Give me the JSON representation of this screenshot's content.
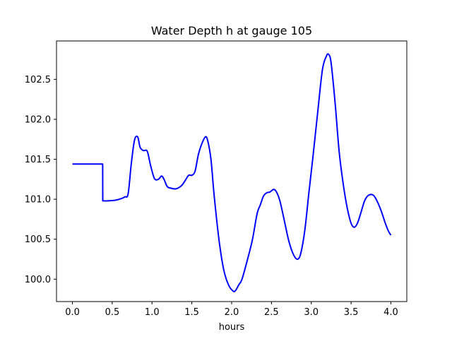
{
  "chart_data": {
    "type": "line",
    "title": "Water Depth h at gauge 105",
    "xlabel": "hours",
    "ylabel": "",
    "xlim": [
      -0.2,
      4.2
    ],
    "ylim": [
      99.72,
      102.98
    ],
    "xticks": [
      0.0,
      0.5,
      1.0,
      1.5,
      2.0,
      2.5,
      3.0,
      3.5,
      4.0
    ],
    "xtick_labels": [
      "0.0",
      "0.5",
      "1.0",
      "1.5",
      "2.0",
      "2.5",
      "3.0",
      "3.5",
      "4.0"
    ],
    "yticks": [
      100.0,
      100.5,
      101.0,
      101.5,
      102.0,
      102.5
    ],
    "ytick_labels": [
      "100.0",
      "100.5",
      "101.0",
      "101.5",
      "102.0",
      "102.5"
    ],
    "grid": false,
    "line_color": "#0000ff",
    "series": [
      {
        "x": [
          0.0,
          0.2,
          0.38,
          0.381,
          0.45,
          0.55,
          0.62,
          0.66,
          0.7,
          0.74,
          0.78,
          0.82,
          0.85,
          0.89,
          0.94,
          0.98,
          1.03,
          1.08,
          1.12,
          1.15,
          1.19,
          1.23,
          1.3,
          1.37,
          1.42,
          1.46,
          1.5,
          1.54,
          1.58,
          1.62,
          1.67,
          1.7,
          1.74,
          1.78,
          1.84,
          1.9,
          1.96,
          2.02,
          2.05,
          2.09,
          2.13,
          2.2,
          2.26,
          2.32,
          2.36,
          2.4,
          2.44,
          2.48,
          2.54,
          2.6,
          2.66,
          2.72,
          2.78,
          2.83,
          2.87,
          2.92,
          2.97,
          3.02,
          3.08,
          3.14,
          3.19,
          3.22,
          3.25,
          3.3,
          3.35,
          3.4,
          3.45,
          3.5,
          3.54,
          3.58,
          3.62,
          3.67,
          3.72,
          3.78,
          3.83,
          3.88,
          3.93,
          3.97,
          4.0
        ],
        "y": [
          101.44,
          101.44,
          101.44,
          100.98,
          100.98,
          100.99,
          101.01,
          101.03,
          101.07,
          101.45,
          101.74,
          101.78,
          101.65,
          101.61,
          101.6,
          101.43,
          101.26,
          101.25,
          101.29,
          101.25,
          101.16,
          101.14,
          101.13,
          101.17,
          101.24,
          101.3,
          101.3,
          101.35,
          101.55,
          101.68,
          101.78,
          101.73,
          101.5,
          101.05,
          100.5,
          100.12,
          99.93,
          99.85,
          99.86,
          99.93,
          100.0,
          100.25,
          100.49,
          100.82,
          100.93,
          101.04,
          101.08,
          101.09,
          101.12,
          101.0,
          100.74,
          100.47,
          100.3,
          100.25,
          100.33,
          100.62,
          101.08,
          101.52,
          102.08,
          102.62,
          102.79,
          102.81,
          102.7,
          102.2,
          101.6,
          101.2,
          100.9,
          100.7,
          100.65,
          100.7,
          100.82,
          100.98,
          101.05,
          101.05,
          100.97,
          100.85,
          100.7,
          100.6,
          100.55
        ]
      }
    ]
  }
}
